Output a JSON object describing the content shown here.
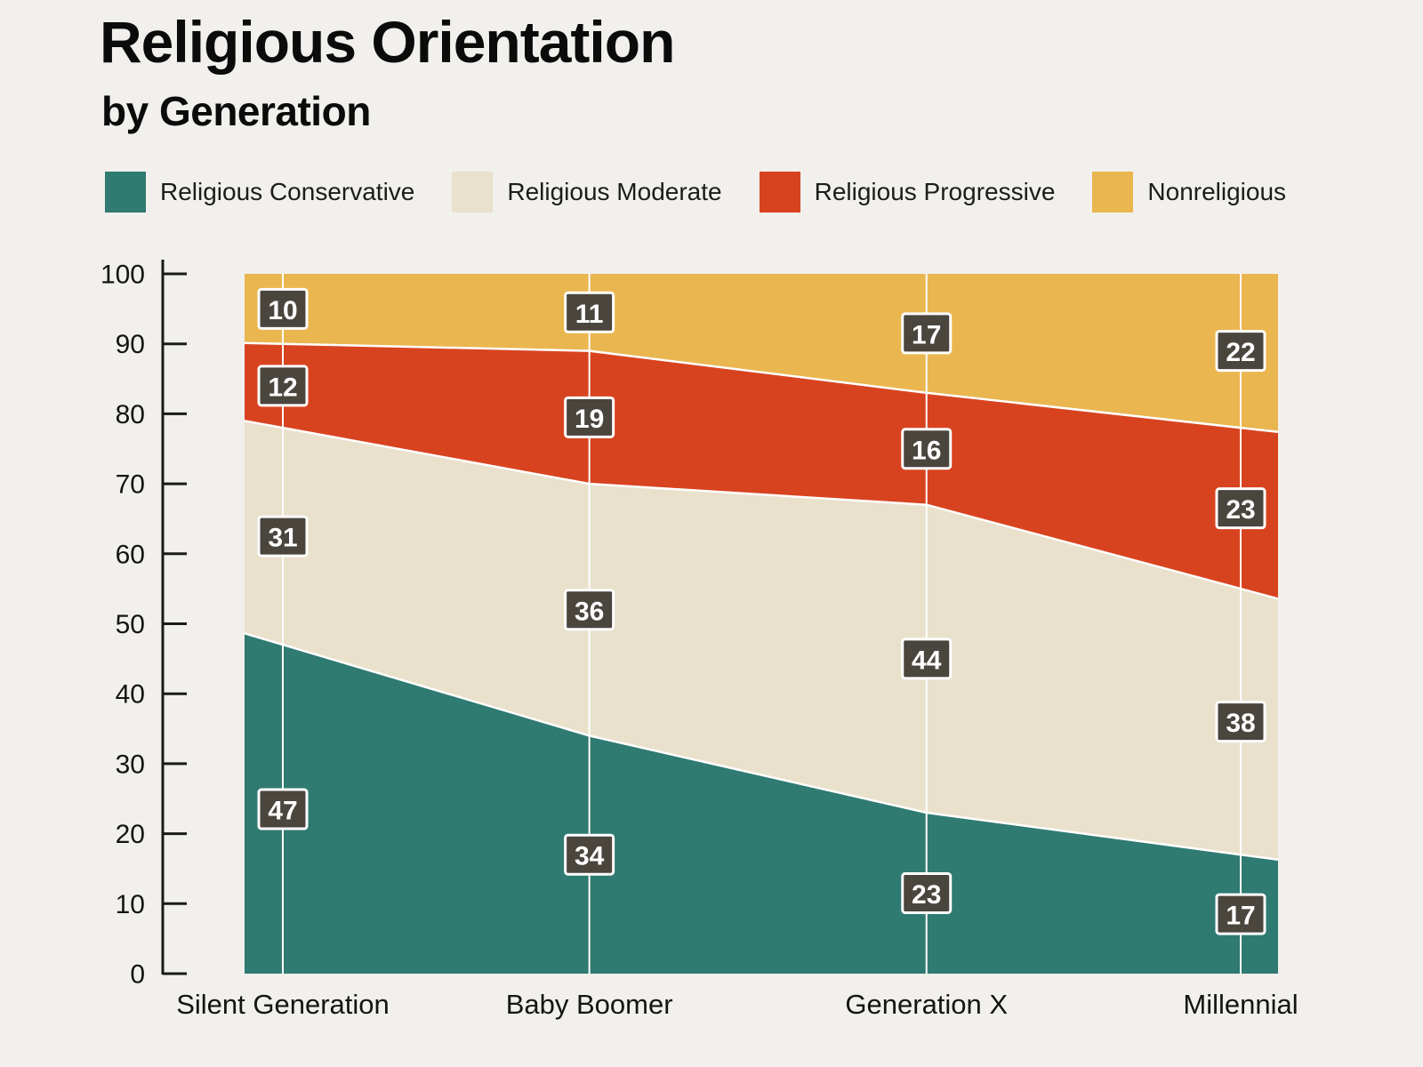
{
  "page": {
    "title": "Religious Orientation",
    "subtitle": "by Generation"
  },
  "chart_data": {
    "type": "area",
    "stacked": true,
    "title": "Religious Orientation",
    "subtitle": "by Generation",
    "categories": [
      "Silent Generation",
      "Baby Boomer",
      "Generation X",
      "Millennial"
    ],
    "series": [
      {
        "name": "Religious Conservative",
        "color": "#2f7a71",
        "values": [
          47,
          34,
          23,
          17
        ]
      },
      {
        "name": "Religious Moderate",
        "color": "#e9e1cb",
        "values": [
          31,
          36,
          44,
          38
        ]
      },
      {
        "name": "Religious Progressive",
        "color": "#d8431f",
        "values": [
          12,
          19,
          16,
          23
        ]
      },
      {
        "name": "Nonreligious",
        "color": "#eab64f",
        "values": [
          10,
          11,
          17,
          22
        ]
      }
    ],
    "ylim": [
      0,
      100
    ],
    "ytick_step": 10,
    "legend_position": "top",
    "grid": "category-vertical-lines",
    "label_box_color": "#4a453d",
    "label_text_color": "#ffffff",
    "axis_color": "#1a1a1a",
    "background_color": "#f2f0ec"
  }
}
